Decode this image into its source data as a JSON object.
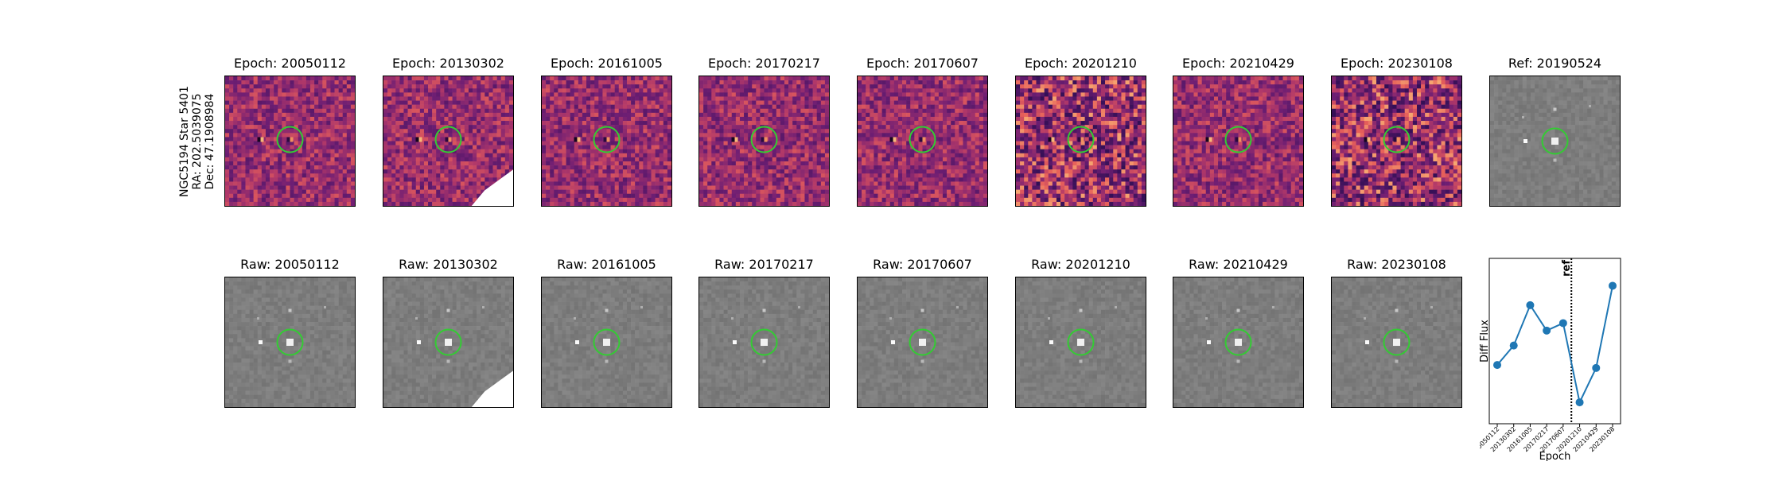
{
  "figure": {
    "target": {
      "line1": "NGC5194 Star 5401",
      "line2": "RA: 202.5039075",
      "line3": "Dec: 47.1908984"
    }
  },
  "colors": {
    "circle": "#33cc33",
    "series": "#1f77b4",
    "magma_low": "#5a1a6e",
    "magma_mid": "#b0366b",
    "magma_high": "#f9a85f",
    "raw_gray": "#8a8a8a"
  },
  "diff_row": [
    {
      "title": "Epoch: 20050112"
    },
    {
      "title": "Epoch: 20130302"
    },
    {
      "title": "Epoch: 20161005"
    },
    {
      "title": "Epoch: 20170217"
    },
    {
      "title": "Epoch: 20170607"
    },
    {
      "title": "Epoch: 20201210"
    },
    {
      "title": "Epoch: 20210429"
    },
    {
      "title": "Epoch: 20230108"
    },
    {
      "title": "Ref: 20190524"
    }
  ],
  "raw_row": [
    {
      "title": "Raw: 20050112"
    },
    {
      "title": "Raw: 20130302"
    },
    {
      "title": "Raw: 20161005"
    },
    {
      "title": "Raw: 20170217"
    },
    {
      "title": "Raw: 20170607"
    },
    {
      "title": "Raw: 20201210"
    },
    {
      "title": "Raw: 20210429"
    },
    {
      "title": "Raw: 20230108"
    }
  ],
  "chart_data": {
    "type": "line",
    "xlabel": "Epoch",
    "ylabel": "Diff Flux",
    "categories": [
      "20050112",
      "20130302",
      "20161005",
      "20170217",
      "20170607",
      "20201210",
      "20210429",
      "20230108"
    ],
    "values": [
      0.34,
      0.47,
      0.74,
      0.57,
      0.62,
      0.09,
      0.32,
      0.87
    ],
    "ylim": [
      0,
      1
    ],
    "ref_line": {
      "label": "ref",
      "position": 4.5
    },
    "grid": false,
    "legend": "none"
  }
}
